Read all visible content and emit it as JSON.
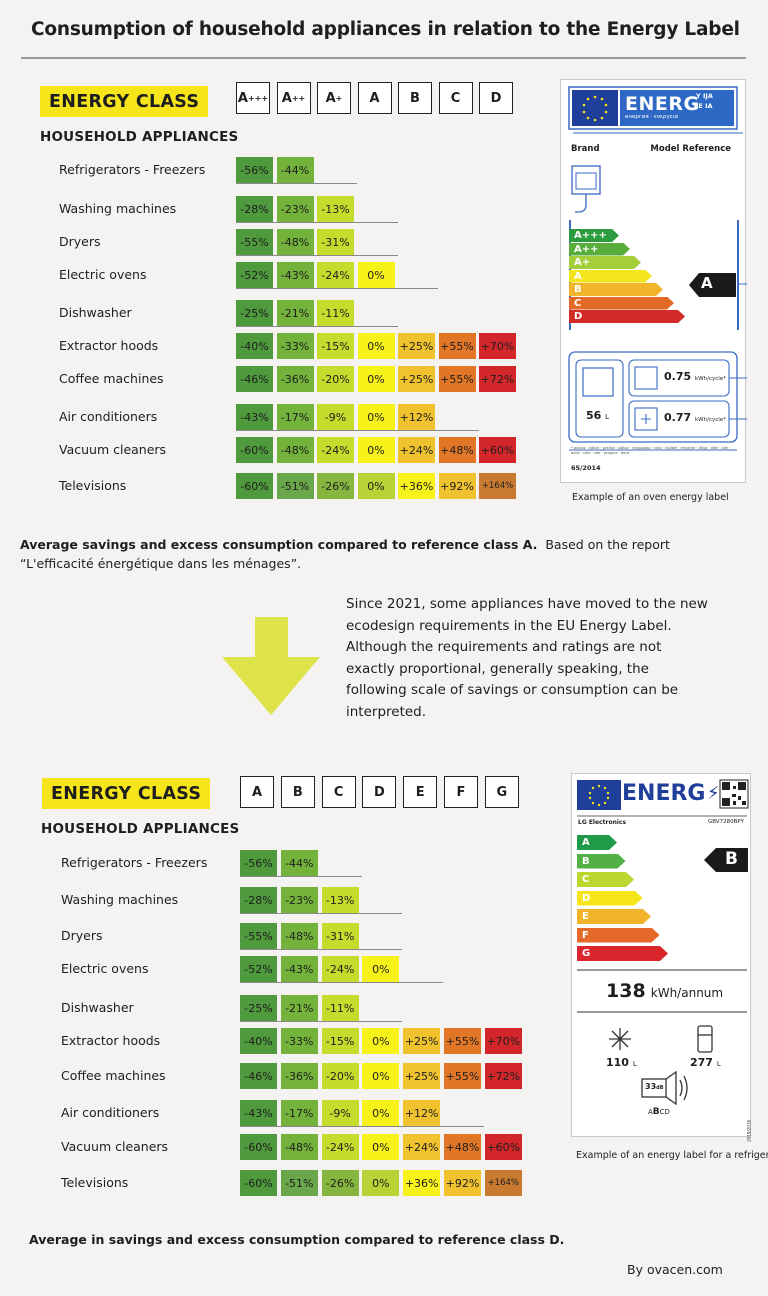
{
  "title": "Consumption of household appliances in relation to the Energy Label",
  "colors": {
    "green_dark": "#4f9a3c",
    "green_mid": "#73b33b",
    "yellow_green": "#c6dc2c",
    "yellow": "#f8f21b",
    "light_orange": "#efc22e",
    "orange": "#e27627",
    "red": "#d3262a",
    "energy_yellow": "#f6e51a",
    "eu_blue": "#1f3f9a"
  },
  "section1": {
    "energy_class": "ENERGY CLASS",
    "household": "HOUSEHOLD APPLIANCES",
    "classes": [
      "A+++",
      "A++",
      "A+",
      "A",
      "B",
      "C",
      "D"
    ],
    "rows": [
      {
        "label": "Refrigerators - Freezers",
        "values": [
          "-56%",
          "-44%"
        ]
      },
      {
        "label": "Washing machines",
        "values": [
          "-28%",
          "-23%",
          "-13%"
        ]
      },
      {
        "label": "Dryers",
        "values": [
          "-55%",
          "-48%",
          "-31%"
        ]
      },
      {
        "label": "Electric ovens",
        "values": [
          "-52%",
          "-43%",
          "-24%",
          "0%"
        ]
      },
      {
        "label": "Dishwasher",
        "values": [
          "-25%",
          "-21%",
          "-11%"
        ]
      },
      {
        "label": "Extractor hoods",
        "values": [
          "-40%",
          "-33%",
          "-15%",
          "0%",
          "+25%",
          "+55%",
          "+70%"
        ]
      },
      {
        "label": "Coffee machines",
        "values": [
          "-46%",
          "-36%",
          "-20%",
          "0%",
          "+25%",
          "+55%",
          "+72%"
        ]
      },
      {
        "label": "Air conditioners",
        "values": [
          "-43%",
          "-17%",
          "-9%",
          "0%",
          "+12%"
        ]
      },
      {
        "label": "Vacuum cleaners",
        "values": [
          "-60%",
          "-48%",
          "-24%",
          "0%",
          "+24%",
          "+48%",
          "+60%"
        ]
      },
      {
        "label": "Televisions",
        "values": [
          "-60%",
          "-51%",
          "-26%",
          "0%",
          "+36%",
          "+92%",
          "+164%"
        ]
      }
    ],
    "note_bold": "Average savings and excess consumption compared to reference class A.",
    "note_rest": "Based on the report",
    "note_line2": "“L'efficacité énergétique dans les ménages”.",
    "label": {
      "energ": "ENERG",
      "lang1": "Y",
      "lang2": "IJA",
      "lang3": "IE",
      "lang4": "IA",
      "sub": "енергия · ενεργεια",
      "brand": "Brand",
      "model": "Model Reference",
      "bars": [
        "A+++",
        "A++",
        "A+",
        "A",
        "B",
        "C",
        "D"
      ],
      "arrow": "A",
      "volume": "56",
      "volume_unit": "L",
      "kwh1": "0.75",
      "kwh2": "0.77",
      "kwh_unit": "kWh/cycle*",
      "fine": "* ριανια · cdlice · prelice · αβλια · ευερμαρια · cdlo · hbilbel · ehydme · dkija · dlke · alle · bolle · cdle · sde · pragnie · σαια",
      "reg": "65/2014",
      "caption": "Example of an oven energy label"
    }
  },
  "middle": {
    "paragraph": "Since 2021, some appliances have moved to the new ecodesign requirements in the EU Energy Label. Although the requirements and ratings are not exactly proportional, generally speaking, the following scale of savings or consumption can be interpreted."
  },
  "section2": {
    "energy_class": "ENERGY CLASS",
    "household": "HOUSEHOLD APPLIANCES",
    "classes": [
      "A",
      "B",
      "C",
      "D",
      "E",
      "F",
      "G"
    ],
    "rows": [
      {
        "label": "Refrigerators - Freezers",
        "values": [
          "-56%",
          "-44%"
        ]
      },
      {
        "label": "Washing machines",
        "values": [
          "-28%",
          "-23%",
          "-13%"
        ]
      },
      {
        "label": "Dryers",
        "values": [
          "-55%",
          "-48%",
          "-31%"
        ]
      },
      {
        "label": "Electric ovens",
        "values": [
          "-52%",
          "-43%",
          "-24%",
          "0%"
        ]
      },
      {
        "label": "Dishwasher",
        "values": [
          "-25%",
          "-21%",
          "-11%"
        ]
      },
      {
        "label": "Extractor hoods",
        "values": [
          "-40%",
          "-33%",
          "-15%",
          "0%",
          "+25%",
          "+55%",
          "+70%"
        ]
      },
      {
        "label": "Coffee machines",
        "values": [
          "-46%",
          "-36%",
          "-20%",
          "0%",
          "+25%",
          "+55%",
          "+72%"
        ]
      },
      {
        "label": "Air conditioners",
        "values": [
          "-43%",
          "-17%",
          "-9%",
          "0%",
          "+12%"
        ]
      },
      {
        "label": "Vacuum cleaners",
        "values": [
          "-60%",
          "-48%",
          "-24%",
          "0%",
          "+24%",
          "+48%",
          "+60%"
        ]
      },
      {
        "label": "Televisions",
        "values": [
          "-60%",
          "-51%",
          "-26%",
          "0%",
          "+36%",
          "+92%",
          "+164%"
        ]
      }
    ],
    "note": "Average in savings and excess consumption compared to reference class D.",
    "label": {
      "energ": "ENERG",
      "brand": "LG Electronics",
      "model": "GBV7280BPY",
      "bars": [
        "A",
        "B",
        "C",
        "D",
        "E",
        "F",
        "G"
      ],
      "arrow": "B",
      "kwh": "138",
      "kwh_unit": "kWh/annum",
      "fridge": "110",
      "freezer": "277",
      "litre": "L",
      "noise": "33",
      "noise_unit": "dB",
      "noise_class_pre": "A",
      "noise_class_bold": "B",
      "noise_class_post": "CD",
      "reg": "2019/2016",
      "caption": "Example of an energy label for a refrigerator"
    }
  },
  "byline": "By ovacen.com"
}
